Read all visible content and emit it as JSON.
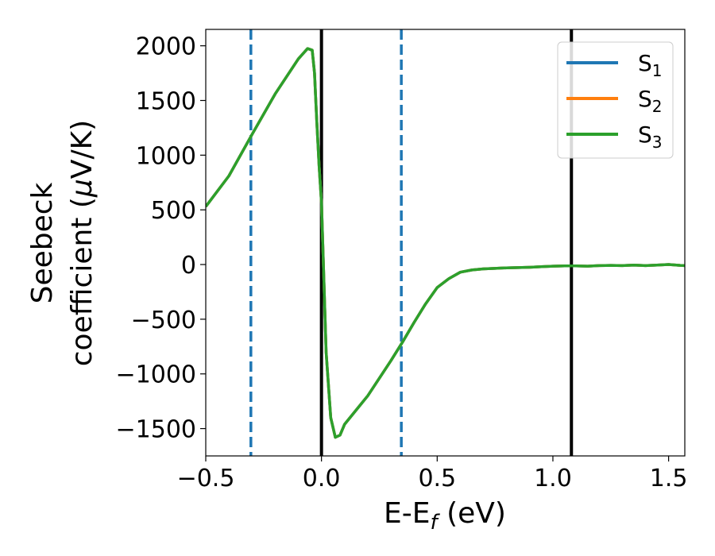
{
  "chart_data": {
    "type": "line",
    "xlabel": "E-E",
    "xlabel_sub": "f",
    "xlabel_unit": " (eV)",
    "ylabel_line1": "Seebeck",
    "ylabel_line2": "coefficient  (",
    "ylabel_mu": "μ",
    "ylabel_unit": "V/K)",
    "xlim": [
      -0.5,
      1.57
    ],
    "ylim": [
      -1750,
      2150
    ],
    "xticks": [
      -0.5,
      0.0,
      0.5,
      1.0,
      1.5
    ],
    "xtick_labels": [
      "−0.5",
      "0.0",
      "0.5",
      "1.0",
      "1.5"
    ],
    "yticks": [
      -1500,
      -1000,
      -500,
      0,
      500,
      1000,
      1500,
      2000
    ],
    "ytick_labels": [
      "−1500",
      "−1000",
      "−500",
      "0",
      "500",
      "1000",
      "1500",
      "2000"
    ],
    "grid": false,
    "legend_position": "top-right",
    "vertical_lines": [
      {
        "x": -0.305,
        "style": "dashed",
        "color": "#1f77b4"
      },
      {
        "x": 0.0,
        "style": "solid",
        "color": "#000000"
      },
      {
        "x": 0.345,
        "style": "dashed",
        "color": "#1f77b4"
      },
      {
        "x": 1.08,
        "style": "solid",
        "color": "#000000"
      }
    ],
    "x": [
      -0.5,
      -0.4,
      -0.3,
      -0.2,
      -0.1,
      -0.06,
      -0.04,
      -0.03,
      -0.02,
      -0.01,
      0.0,
      0.02,
      0.04,
      0.06,
      0.08,
      0.1,
      0.2,
      0.3,
      0.35,
      0.4,
      0.45,
      0.5,
      0.55,
      0.6,
      0.65,
      0.7,
      0.75,
      0.8,
      0.85,
      0.9,
      0.95,
      1.0,
      1.05,
      1.1,
      1.15,
      1.2,
      1.25,
      1.3,
      1.35,
      1.4,
      1.45,
      1.5,
      1.55,
      1.57
    ],
    "series": [
      {
        "name": "S",
        "sub": "1",
        "color": "#1f77b4",
        "values": [
          530,
          810,
          1190,
          1560,
          1880,
          1975,
          1960,
          1750,
          1300,
          900,
          560,
          -800,
          -1400,
          -1580,
          -1560,
          -1460,
          -1200,
          -880,
          -710,
          -530,
          -360,
          -210,
          -130,
          -70,
          -50,
          -40,
          -35,
          -30,
          -28,
          -25,
          -20,
          -15,
          -12,
          -12,
          -15,
          -10,
          -8,
          -10,
          -5,
          -10,
          -5,
          0,
          -8,
          -10
        ]
      },
      {
        "name": "S",
        "sub": "2",
        "color": "#ff7f0e",
        "values": [
          530,
          810,
          1190,
          1560,
          1880,
          1975,
          1960,
          1750,
          1300,
          900,
          560,
          -800,
          -1400,
          -1580,
          -1560,
          -1460,
          -1200,
          -880,
          -710,
          -530,
          -360,
          -210,
          -130,
          -70,
          -50,
          -40,
          -35,
          -30,
          -28,
          -25,
          -20,
          -15,
          -12,
          -12,
          -15,
          -10,
          -8,
          -10,
          -5,
          -10,
          -5,
          0,
          -8,
          -10
        ]
      },
      {
        "name": "S",
        "sub": "3",
        "color": "#2ca02c",
        "values": [
          530,
          810,
          1190,
          1560,
          1880,
          1975,
          1960,
          1750,
          1300,
          900,
          560,
          -800,
          -1400,
          -1580,
          -1560,
          -1460,
          -1200,
          -880,
          -710,
          -530,
          -360,
          -210,
          -130,
          -70,
          -50,
          -40,
          -35,
          -30,
          -28,
          -25,
          -20,
          -15,
          -12,
          -12,
          -15,
          -10,
          -8,
          -10,
          -5,
          -10,
          -5,
          0,
          -8,
          -10
        ]
      }
    ]
  }
}
